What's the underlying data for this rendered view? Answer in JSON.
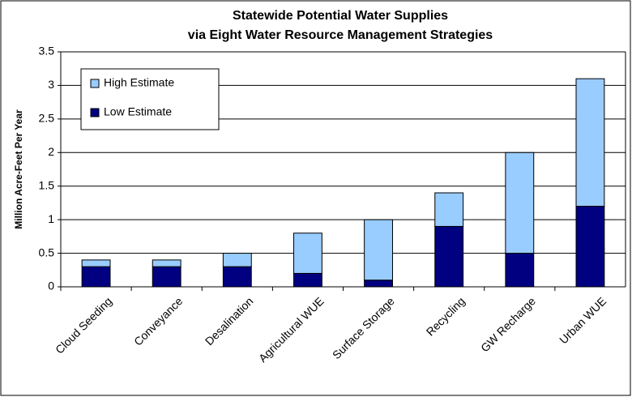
{
  "chart_data": {
    "type": "stacked_bar",
    "title": "Statewide Potential Water Supplies",
    "subtitle": "via Eight Water Resource Management Strategies",
    "y_label": "Million Acre-Feet Per Year",
    "categories": [
      "Cloud Seeding",
      "Conveyance",
      "Desalination",
      "Agricultural WUE",
      "Surface Storage",
      "Recycling",
      "GW Recharge",
      "Urban WUE"
    ],
    "series": [
      {
        "name": "Low Estimate",
        "color": "#000080",
        "values": [
          0.3,
          0.3,
          0.3,
          0.2,
          0.1,
          0.9,
          0.5,
          1.2
        ]
      },
      {
        "name": "High Estimate",
        "color": "#99ccff",
        "values": [
          0.1,
          0.1,
          0.2,
          0.6,
          0.9,
          0.5,
          1.5,
          1.9
        ]
      }
    ],
    "ylim": [
      0,
      3.5
    ],
    "yticks": [
      0,
      0.5,
      1,
      1.5,
      2,
      2.5,
      3,
      3.5
    ],
    "grid": true,
    "legend": "upper left"
  }
}
